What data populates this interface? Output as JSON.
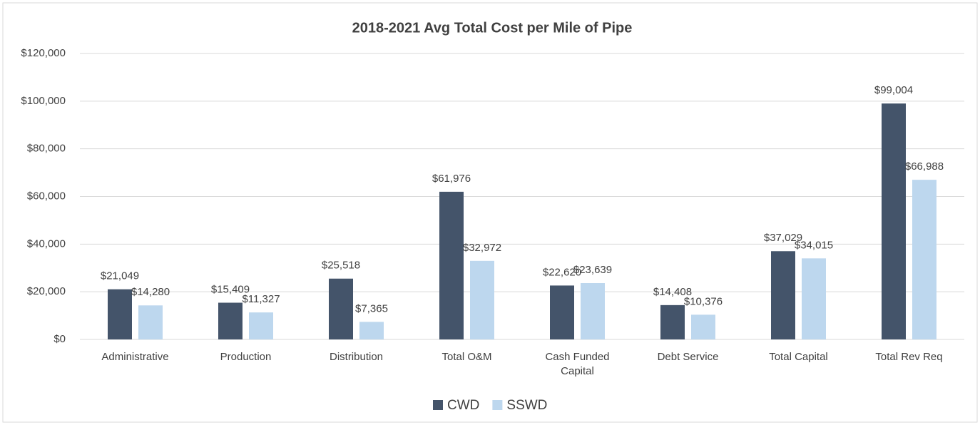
{
  "chart_data": {
    "type": "bar",
    "title": "2018-2021 Avg Total Cost per Mile of Pipe",
    "categories": [
      "Administrative",
      "Production",
      "Distribution",
      "Total O&M",
      "Cash Funded Capital",
      "Debt Service",
      "Total Capital",
      "Total Rev Req"
    ],
    "series": [
      {
        "name": "CWD",
        "color": "#44546a",
        "values": [
          21049,
          15409,
          25518,
          61976,
          22620,
          14408,
          37029,
          99004
        ],
        "value_labels": [
          "$21,049",
          "$15,409",
          "$25,518",
          "$61,976",
          "$22,620",
          "$14,408",
          "$37,029",
          "$99,004"
        ]
      },
      {
        "name": "SSWD",
        "color": "#bdd7ee",
        "values": [
          14280,
          11327,
          7365,
          32972,
          23639,
          10376,
          34015,
          66988
        ],
        "value_labels": [
          "$14,280",
          "$11,327",
          "$7,365",
          "$32,972",
          "$23,639",
          "$10,376",
          "$34,015",
          "$66,988"
        ]
      }
    ],
    "ylim": [
      0,
      120000
    ],
    "yticks": [
      {
        "value": 0,
        "label": "$0"
      },
      {
        "value": 20000,
        "label": "$20,000"
      },
      {
        "value": 40000,
        "label": "$40,000"
      },
      {
        "value": 60000,
        "label": "$60,000"
      },
      {
        "value": 80000,
        "label": "$80,000"
      },
      {
        "value": 100000,
        "label": "$100,000"
      },
      {
        "value": 120000,
        "label": "$120,000"
      }
    ],
    "grid": true,
    "legend": "bottom"
  }
}
